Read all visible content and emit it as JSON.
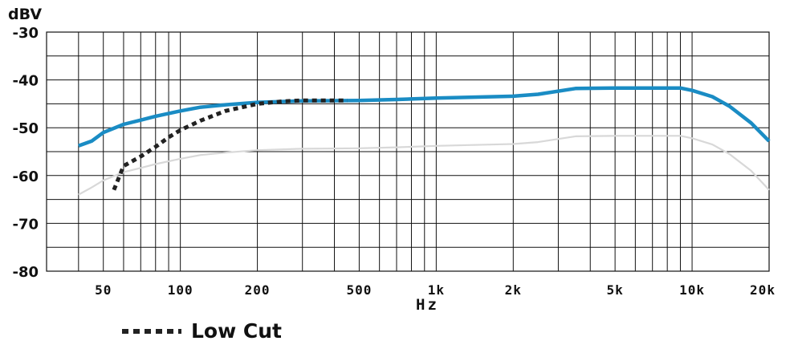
{
  "chart_data": {
    "type": "line",
    "ylabel": "dBV",
    "xlabel": "Hz",
    "xscale": "log",
    "xlim": [
      30,
      20000
    ],
    "ylim": [
      -80,
      -30
    ],
    "yticks": [
      -30,
      -40,
      -50,
      -60,
      -70,
      -80
    ],
    "ytick_labels": [
      "-30",
      "-40",
      "-50",
      "-60",
      "-70",
      "-80"
    ],
    "xticks": [
      50,
      100,
      200,
      500,
      1000,
      2000,
      5000,
      10000,
      20000
    ],
    "xtick_labels": [
      "50",
      "100",
      "200",
      "500",
      "1k",
      "2k",
      "5k",
      "10k",
      "20k"
    ],
    "grid": true,
    "legend_position": "bottom-left",
    "series": [
      {
        "color": "#1a8cc4",
        "style": "solid",
        "x": [
          40,
          45,
          50,
          60,
          70,
          80,
          100,
          120,
          150,
          200,
          300,
          500,
          700,
          1000,
          2000,
          2500,
          3500,
          5000,
          7000,
          9000,
          10000,
          12000,
          14000,
          17000,
          20000
        ],
        "y": [
          -53.8,
          -52.8,
          -51,
          -49.3,
          -48.4,
          -47.6,
          -46.5,
          -45.7,
          -45.2,
          -44.7,
          -44.4,
          -44.3,
          -44.1,
          -43.8,
          -43.4,
          -43,
          -41.8,
          -41.7,
          -41.7,
          -41.7,
          -42.2,
          -43.5,
          -45.5,
          -49,
          -52.8
        ]
      },
      {
        "color": "#d8d8d8",
        "style": "solid",
        "x": [
          40,
          45,
          50,
          60,
          70,
          80,
          100,
          120,
          150,
          200,
          300,
          500,
          700,
          1000,
          2000,
          2500,
          3500,
          5000,
          7000,
          9000,
          10000,
          12000,
          14000,
          17000,
          20000
        ],
        "y": [
          -64,
          -62.5,
          -61,
          -59.3,
          -58.4,
          -57.6,
          -56.5,
          -55.7,
          -55.2,
          -54.7,
          -54.4,
          -54.3,
          -54.1,
          -53.8,
          -53.4,
          -53,
          -51.8,
          -51.7,
          -51.7,
          -51.7,
          -52.2,
          -53.5,
          -55.5,
          -59,
          -63
        ]
      },
      {
        "name": "Low Cut",
        "color": "#222222",
        "style": "dotted",
        "x": [
          55,
          60,
          70,
          80,
          90,
          100,
          120,
          150,
          200,
          250,
          300,
          400,
          450
        ],
        "y": [
          -63,
          -58,
          -56,
          -54,
          -52,
          -50.5,
          -48.5,
          -46.5,
          -45,
          -44.5,
          -44.3,
          -44.3,
          -44.3
        ]
      }
    ]
  }
}
